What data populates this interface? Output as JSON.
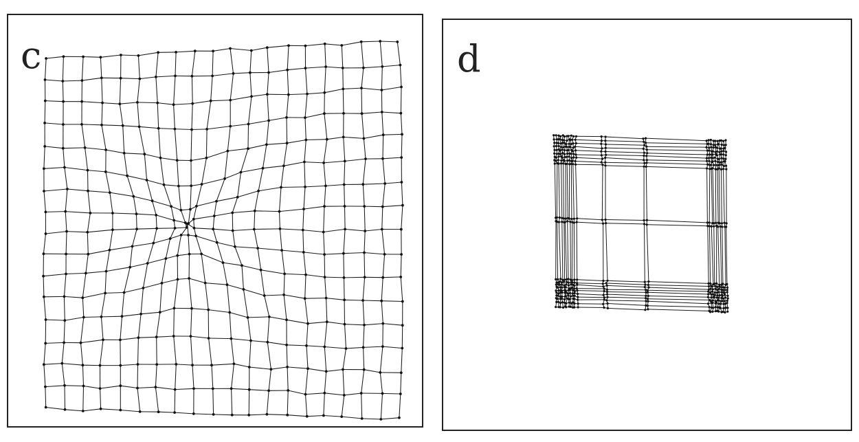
{
  "panels": [
    {
      "id": "c",
      "label": "c",
      "description_color": "#222222"
    },
    {
      "id": "d",
      "label": "d",
      "description_color": "#222222"
    }
  ],
  "colors": {
    "line": "#1a1a1a",
    "node": "#111111",
    "frame": "#222222",
    "background": "#ffffff"
  }
}
